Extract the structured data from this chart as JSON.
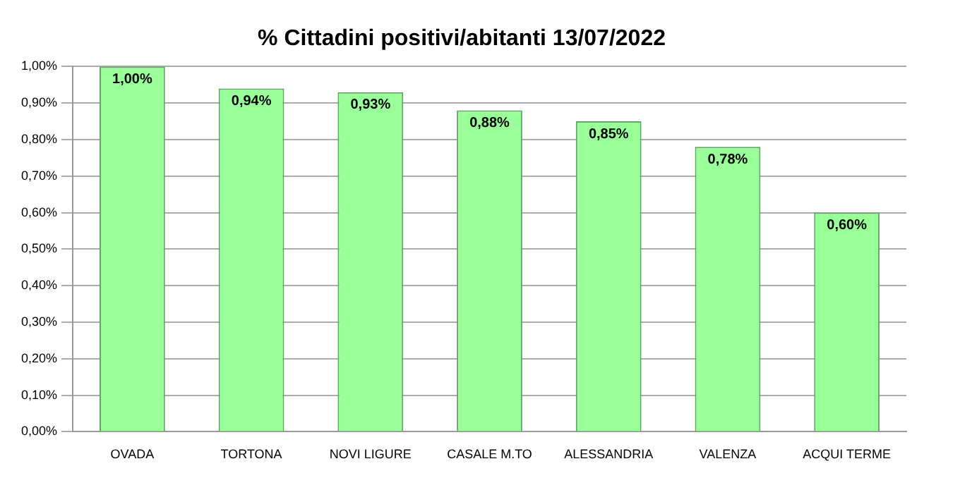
{
  "chart_data": {
    "type": "bar",
    "title": "% Cittadini positivi/abitanti 13/07/2022",
    "categories": [
      "OVADA",
      "TORTONA",
      "NOVI LIGURE",
      "CASALE M.TO",
      "ALESSANDRIA",
      "VALENZA",
      "ACQUI TERME"
    ],
    "values": [
      1.0,
      0.94,
      0.93,
      0.88,
      0.85,
      0.78,
      0.6
    ],
    "value_labels": [
      "1,00%",
      "0,94%",
      "0,93%",
      "0,88%",
      "0,85%",
      "0,78%",
      "0,60%"
    ],
    "color": "#99ff99",
    "ylim": [
      0,
      1
    ],
    "yticks": [
      {
        "value": 0,
        "label": "0,00%"
      },
      {
        "value": 0.1,
        "label": "0,10%"
      },
      {
        "value": 0.2,
        "label": "0,20%"
      },
      {
        "value": 0.3,
        "label": "0,30%"
      },
      {
        "value": 0.4,
        "label": "0,40%"
      },
      {
        "value": 0.5,
        "label": "0,50%"
      },
      {
        "value": 0.6,
        "label": "0,60%"
      },
      {
        "value": 0.7,
        "label": "0,70%"
      },
      {
        "value": 0.8,
        "label": "0,80%"
      },
      {
        "value": 0.9,
        "label": "0,90%"
      },
      {
        "value": 1,
        "label": "1,00%"
      }
    ],
    "grid": "y",
    "legend": false
  }
}
